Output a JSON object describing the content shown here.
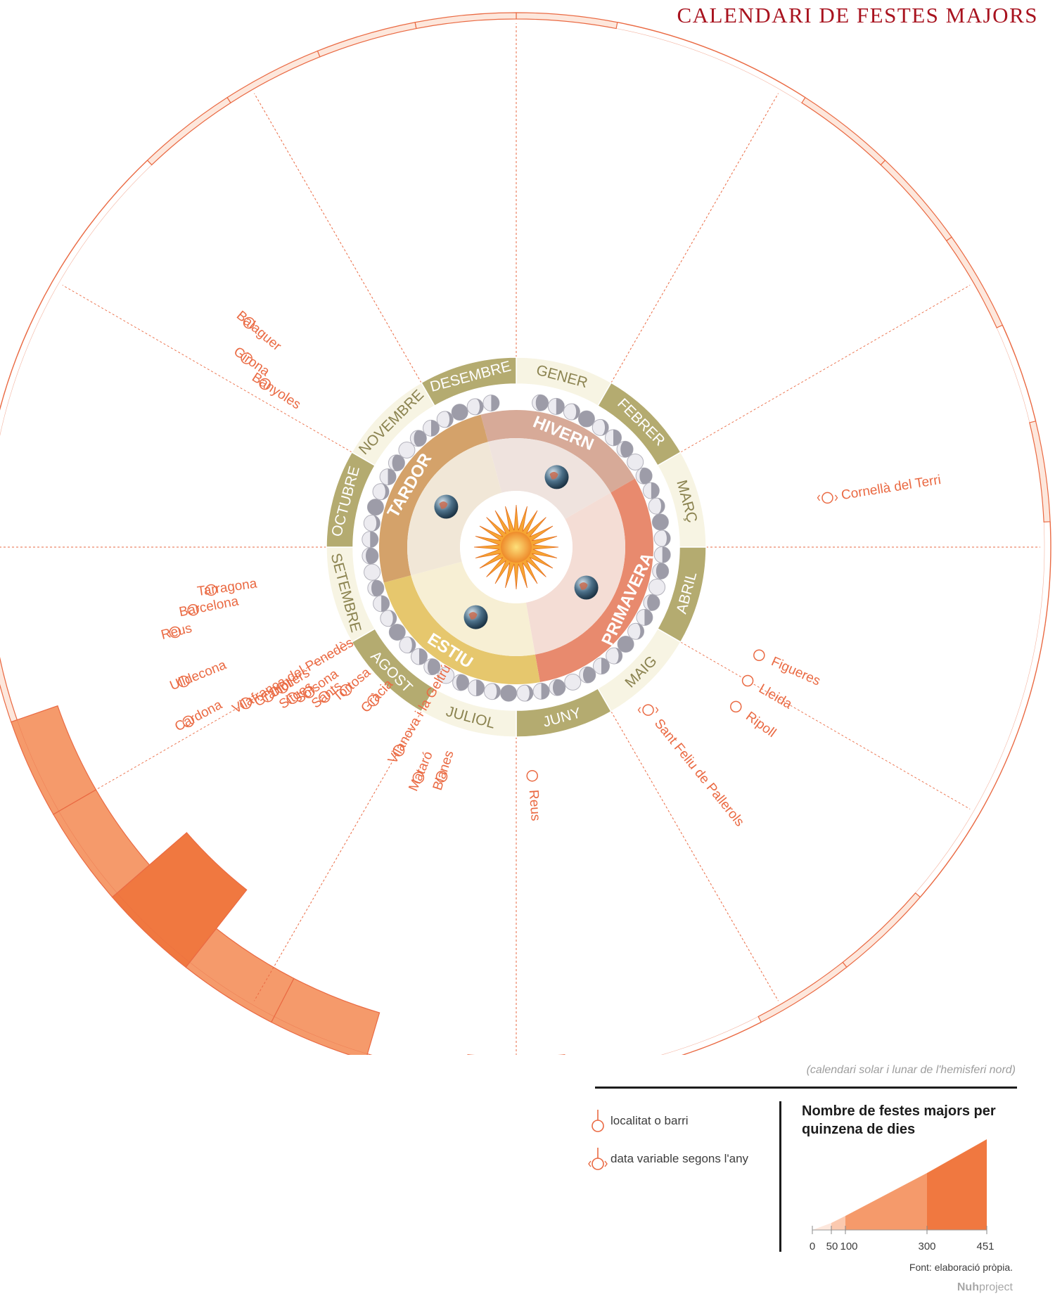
{
  "title": "CALENDARI DE FESTES MAJORS",
  "months": [
    "GENER",
    "FEBRER",
    "MARÇ",
    "ABRIL",
    "MAIG",
    "JUNY",
    "JULIOL",
    "AGOST",
    "SETEMBRE",
    "OCTUBRE",
    "NOVEMBRE",
    "DESEMBRE"
  ],
  "seasons": [
    "HIVERN",
    "PRIMAVERA",
    "ESTIU",
    "TARDOR"
  ],
  "places": [
    {
      "name": "Cornellà del Terri",
      "marker": "variable"
    },
    {
      "name": "Figueres",
      "marker": "fixed"
    },
    {
      "name": "Lleida",
      "marker": "fixed"
    },
    {
      "name": "Ripoll",
      "marker": "fixed"
    },
    {
      "name": "Sant Feliu de Pallerols",
      "marker": "variable"
    },
    {
      "name": "Reus",
      "marker": "fixed"
    },
    {
      "name": "Blanes",
      "marker": "fixed"
    },
    {
      "name": "Mataró",
      "marker": "fixed"
    },
    {
      "name": "Vilanova i la Geltrú",
      "marker": "fixed"
    },
    {
      "name": "Gràcia",
      "marker": "fixed"
    },
    {
      "name": "Tortosa",
      "marker": "fixed"
    },
    {
      "name": "Sants",
      "marker": "fixed"
    },
    {
      "name": "Solsona",
      "marker": "fixed"
    },
    {
      "name": "Sitges",
      "marker": "fixed"
    },
    {
      "name": "Olot",
      "marker": "fixed"
    },
    {
      "name": "Granollers",
      "marker": "fixed"
    },
    {
      "name": "Vilafranca del Penedès",
      "marker": "fixed"
    },
    {
      "name": "Cardona",
      "marker": "fixed"
    },
    {
      "name": "Ulldecona",
      "marker": "fixed"
    },
    {
      "name": "Reus",
      "marker": "fixed"
    },
    {
      "name": "Barcelona",
      "marker": "fixed"
    },
    {
      "name": "Tarragona",
      "marker": "fixed"
    },
    {
      "name": "Banyoles",
      "marker": "fixed"
    },
    {
      "name": "Girona",
      "marker": "fixed"
    },
    {
      "name": "Balaguer",
      "marker": "fixed"
    }
  ],
  "fortnight_levels": [
    1,
    0,
    0,
    1,
    1,
    1,
    0,
    1,
    0,
    0,
    0,
    0,
    1,
    1,
    0,
    0,
    2,
    1,
    3,
    3,
    4,
    3,
    3,
    1,
    1,
    0,
    0,
    0,
    0,
    1,
    1,
    1,
    1
  ],
  "legend": {
    "note": "(calendari solar i lunar de l'hemisferi nord)",
    "fixed_label": "localitat o barri",
    "variable_label": "data variable segons l'any",
    "count_title": "Nombre de festes majors per quinzena de dies",
    "scale_ticks": [
      "0",
      "50",
      "100",
      "300",
      "451"
    ],
    "scale_colors": [
      "#fde7dc",
      "#fbc9af",
      "#f59a6b",
      "#f07840"
    ],
    "source": "Font:  elaboració pròpia.",
    "brand_bold": "Nuh",
    "brand_light": "project"
  },
  "colors": {
    "accent": "#ea6a43",
    "title": "#a8131f",
    "olive": "#b4ab70",
    "cream": "#f7f4e3",
    "sun": "#f2a634"
  }
}
